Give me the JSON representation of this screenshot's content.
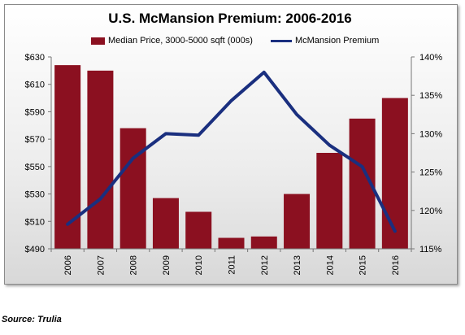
{
  "chart_data": {
    "type": "bar+line",
    "title": "U.S. McMansion Premium: 2006-2016",
    "categories": [
      "2006",
      "2007",
      "2008",
      "2009",
      "2010",
      "2011",
      "2012",
      "2013",
      "2014",
      "2015",
      "2016"
    ],
    "series": [
      {
        "name": "Median Price, 3000-5000 sqft (000s)",
        "type": "bar",
        "axis": "left",
        "color": "#8b1020",
        "values": [
          624,
          620,
          578,
          527,
          517,
          498,
          499,
          530,
          560,
          585,
          600
        ]
      },
      {
        "name": "McMansion Premium",
        "type": "line",
        "axis": "right",
        "color": "#1a2f7f",
        "values": [
          118.2,
          121.5,
          126.8,
          130.0,
          129.8,
          134.3,
          138.0,
          132.5,
          128.5,
          125.7,
          117.3
        ]
      }
    ],
    "y_left": {
      "min": 490,
      "max": 630,
      "ticks": [
        "$490",
        "$510",
        "$530",
        "$550",
        "$570",
        "$590",
        "$610",
        "$630"
      ]
    },
    "y_right": {
      "min": 115,
      "max": 140,
      "ticks": [
        "115%",
        "120%",
        "125%",
        "130%",
        "135%",
        "140%"
      ]
    },
    "legend_position": "top",
    "grid": false
  },
  "source": "Source: Trulia"
}
